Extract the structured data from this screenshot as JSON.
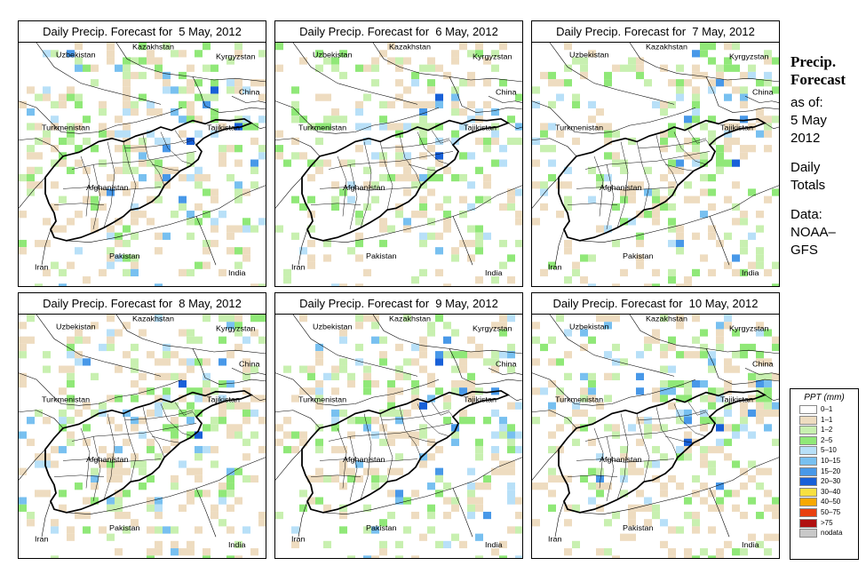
{
  "panels": [
    {
      "title": "Daily Precip. Forecast for  5 May, 2012"
    },
    {
      "title": "Daily Precip. Forecast for  6 May, 2012"
    },
    {
      "title": "Daily Precip. Forecast for  7 May, 2012"
    },
    {
      "title": "Daily Precip. Forecast for  8 May, 2012"
    },
    {
      "title": "Daily Precip. Forecast for  9 May, 2012"
    },
    {
      "title": "Daily Precip. Forecast for  10 May, 2012"
    }
  ],
  "map_labels": {
    "uzbekistan": "Uzbekistan",
    "kazakhstan": "Kazakhstan",
    "kyrgyzstan": "Kyrgyzstan",
    "china": "China",
    "turkmenistan": "Turkmenistan",
    "tajikistan": "Tajikistan",
    "afghanistan": "Afghanistan",
    "pakistan": "Pakistan",
    "iran": "Iran",
    "india": "India"
  },
  "sidebar": {
    "heading_line1": "Precip.",
    "heading_line2": "Forecast",
    "asof": "as of:",
    "date_line1": "5 May",
    "date_line2": "2012",
    "daily_line1": "Daily",
    "daily_line2": "Totals",
    "data_line1": "Data:",
    "data_line2": "NOAA–",
    "data_line3": "GFS"
  },
  "legend": {
    "title": "PPT (mm)",
    "items": [
      {
        "label": "0–1",
        "color": "#ffffff"
      },
      {
        "label": "1–1",
        "color": "#eedcc0"
      },
      {
        "label": "1–2",
        "color": "#c8f0b0"
      },
      {
        "label": "2–5",
        "color": "#90e878"
      },
      {
        "label": "5–10",
        "color": "#b8e0f8"
      },
      {
        "label": "10–15",
        "color": "#78c0f0"
      },
      {
        "label": "15–20",
        "color": "#4898e8"
      },
      {
        "label": "20–30",
        "color": "#1860d8"
      },
      {
        "label": "30–40",
        "color": "#f8e040"
      },
      {
        "label": "40–50",
        "color": "#f8a800"
      },
      {
        "label": "50–75",
        "color": "#e84010"
      },
      {
        "label": ">75",
        "color": "#b01010"
      },
      {
        "label": "nodata",
        "color": "#c8c8c8"
      }
    ]
  }
}
